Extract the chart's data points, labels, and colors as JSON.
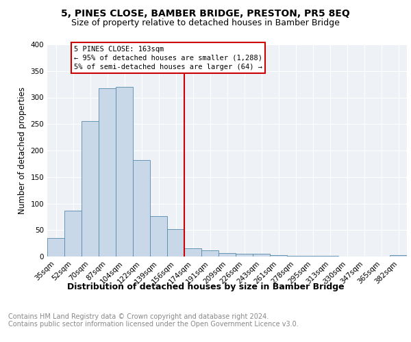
{
  "title1": "5, PINES CLOSE, BAMBER BRIDGE, PRESTON, PR5 8EQ",
  "title2": "Size of property relative to detached houses in Bamber Bridge",
  "xlabel": "Distribution of detached houses by size in Bamber Bridge",
  "ylabel": "Number of detached properties",
  "footer": "Contains HM Land Registry data © Crown copyright and database right 2024.\nContains public sector information licensed under the Open Government Licence v3.0.",
  "categories": [
    "35sqm",
    "52sqm",
    "70sqm",
    "87sqm",
    "104sqm",
    "122sqm",
    "139sqm",
    "156sqm",
    "174sqm",
    "191sqm",
    "209sqm",
    "226sqm",
    "243sqm",
    "261sqm",
    "278sqm",
    "295sqm",
    "313sqm",
    "330sqm",
    "347sqm",
    "365sqm",
    "382sqm"
  ],
  "values": [
    35,
    87,
    255,
    317,
    320,
    182,
    76,
    51,
    15,
    11,
    6,
    5,
    5,
    3,
    1,
    1,
    1,
    0,
    0,
    0,
    3
  ],
  "bar_color": "#c8d8e8",
  "bar_edge_color": "#5588aa",
  "vline_x": 7.5,
  "vline_color": "#cc0000",
  "annotation_title": "5 PINES CLOSE: 163sqm",
  "annotation_line1": "← 95% of detached houses are smaller (1,288)",
  "annotation_line2": "5% of semi-detached houses are larger (64) →",
  "annotation_box_color": "#cc0000",
  "ylim": [
    0,
    400
  ],
  "yticks": [
    0,
    50,
    100,
    150,
    200,
    250,
    300,
    350,
    400
  ],
  "title1_fontsize": 10,
  "title2_fontsize": 9,
  "xlabel_fontsize": 9,
  "ylabel_fontsize": 8.5,
  "tick_fontsize": 7.5,
  "annotation_fontsize": 7.5,
  "footer_fontsize": 7,
  "background_color": "#eef2f7"
}
